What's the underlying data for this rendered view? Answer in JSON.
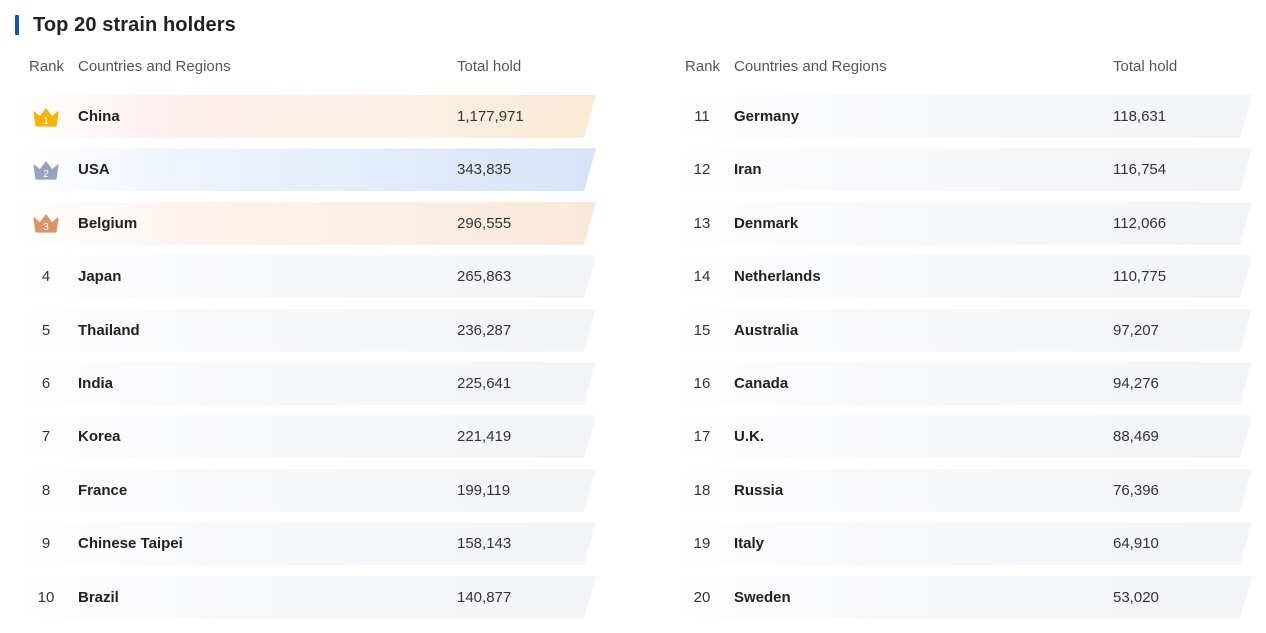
{
  "title": "Top 20 strain holders",
  "columns": {
    "rank": "Rank",
    "country": "Countries and Regions",
    "total": "Total hold"
  },
  "rows": [
    {
      "rank": "1",
      "country": "China",
      "total": "1,177,971",
      "medal": "gold"
    },
    {
      "rank": "2",
      "country": "USA",
      "total": "343,835",
      "medal": "silver"
    },
    {
      "rank": "3",
      "country": "Belgium",
      "total": "296,555",
      "medal": "bronze"
    },
    {
      "rank": "4",
      "country": "Japan",
      "total": "265,863"
    },
    {
      "rank": "5",
      "country": "Thailand",
      "total": "236,287"
    },
    {
      "rank": "6",
      "country": "India",
      "total": "225,641"
    },
    {
      "rank": "7",
      "country": "Korea",
      "total": "221,419"
    },
    {
      "rank": "8",
      "country": "France",
      "total": "199,119"
    },
    {
      "rank": "9",
      "country": "Chinese Taipei",
      "total": "158,143"
    },
    {
      "rank": "10",
      "country": "Brazil",
      "total": "140,877"
    },
    {
      "rank": "11",
      "country": "Germany",
      "total": "118,631"
    },
    {
      "rank": "12",
      "country": "Iran",
      "total": "116,754"
    },
    {
      "rank": "13",
      "country": "Denmark",
      "total": "112,066"
    },
    {
      "rank": "14",
      "country": "Netherlands",
      "total": "110,775"
    },
    {
      "rank": "15",
      "country": "Australia",
      "total": "97,207"
    },
    {
      "rank": "16",
      "country": "Canada",
      "total": "94,276"
    },
    {
      "rank": "17",
      "country": "U.K.",
      "total": "88,469"
    },
    {
      "rank": "18",
      "country": "Russia",
      "total": "76,396"
    },
    {
      "rank": "19",
      "country": "Italy",
      "total": "64,910"
    },
    {
      "rank": "20",
      "country": "Sweden",
      "total": "53,020"
    }
  ],
  "colors": {
    "accent": "#1a4fb5",
    "gold": "#f5b40a",
    "silver": "#9aa3bd",
    "bronze": "#d9956a"
  }
}
